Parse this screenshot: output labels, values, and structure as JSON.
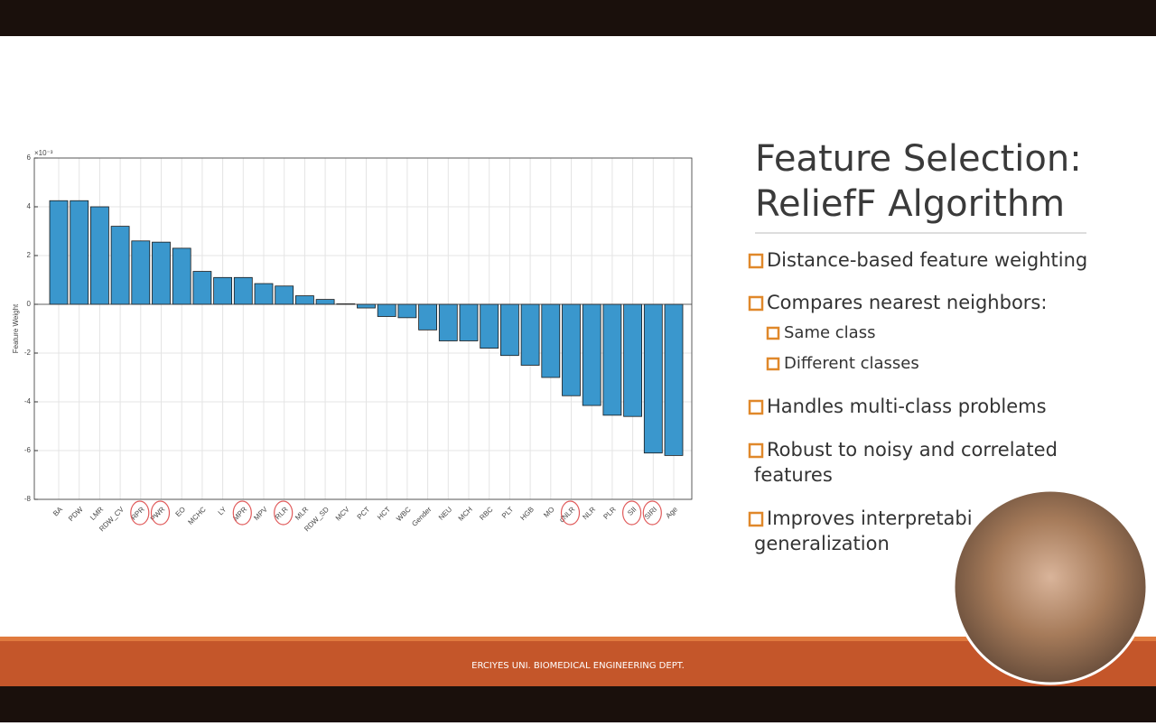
{
  "chart_data": {
    "type": "bar",
    "ylabel": "Feature Weight",
    "y_exponent": "×10⁻³",
    "categories": [
      "BA",
      "PDW",
      "LMR",
      "RDW_CV",
      "RPR",
      "PWR",
      "EO",
      "MCHC",
      "LY",
      "MPR",
      "MPV",
      "RLR",
      "MLR",
      "RDW_SD",
      "MCV",
      "PCT",
      "HCT",
      "WBC",
      "Gender",
      "NEU",
      "MCH",
      "RBC",
      "PLT",
      "HGB",
      "MO",
      "dNLR",
      "NLR",
      "PLR",
      "SII",
      "SIRI",
      "Age"
    ],
    "values": [
      4.25,
      4.25,
      4.0,
      3.2,
      2.6,
      2.55,
      2.3,
      1.35,
      1.1,
      1.1,
      0.85,
      0.75,
      0.35,
      0.2,
      0.02,
      -0.15,
      -0.5,
      -0.55,
      -1.05,
      -1.5,
      -1.5,
      -1.8,
      -2.1,
      -2.5,
      -3.0,
      -3.75,
      -4.15,
      -4.55,
      -4.6,
      -6.1,
      -6.2
    ],
    "color": "#3a97cd",
    "ylim": [
      -8,
      6
    ],
    "yticks": [
      -8,
      -6,
      -4,
      -2,
      0,
      2,
      4,
      6
    ],
    "grid": true,
    "circled": [
      4,
      5,
      9,
      11,
      25,
      28,
      29
    ],
    "circle_color": "#e05a5a"
  },
  "slide": {
    "title": [
      "Feature Selection:",
      "ReliefF Algorithm"
    ],
    "bullets": [
      {
        "text": [
          "Distance-based feature weighting"
        ]
      },
      {
        "text": [
          "Compares nearest neighbors:"
        ],
        "sub": [
          "Same class",
          "Different classes"
        ]
      },
      {
        "text": [
          "Handles multi-class problems"
        ]
      },
      {
        "text": [
          "Robust to noisy and correlated",
          "features"
        ]
      },
      {
        "text": [
          "Improves interpretabi",
          "generalization"
        ]
      }
    ],
    "footer": "ERCIYES UNI. BIOMEDICAL ENGINEERING DEPT."
  }
}
